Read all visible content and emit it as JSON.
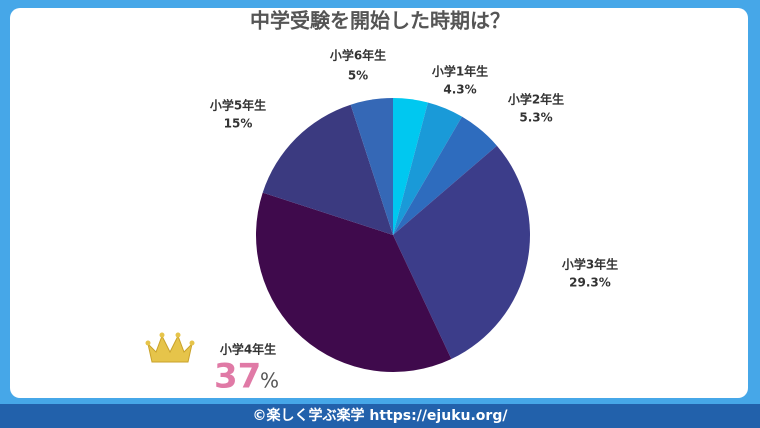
{
  "chart_data": {
    "type": "pie",
    "title": "中学受験を開始した時期は？",
    "categories": [
      null,
      "小学1年生",
      "小学2年生",
      "小学3年生",
      "小学4年生",
      "小学5年生",
      "小学6年生"
    ],
    "values": [
      4.1,
      4.3,
      5.3,
      29.3,
      37,
      15,
      5
    ],
    "value_labels": [
      null,
      "4.3%",
      "5.3%",
      "29.3%",
      "37",
      "15%",
      "5%"
    ],
    "highlight_unit": "%",
    "colors": [
      "#00c8f0",
      "#1a9ad8",
      "#2e6cbe",
      "#3c3d8a",
      "#3f0a4c",
      "#3b3a80",
      "#3568b6"
    ],
    "footer": "©楽しく学ぶ楽学 https://ejuku.org/"
  }
}
